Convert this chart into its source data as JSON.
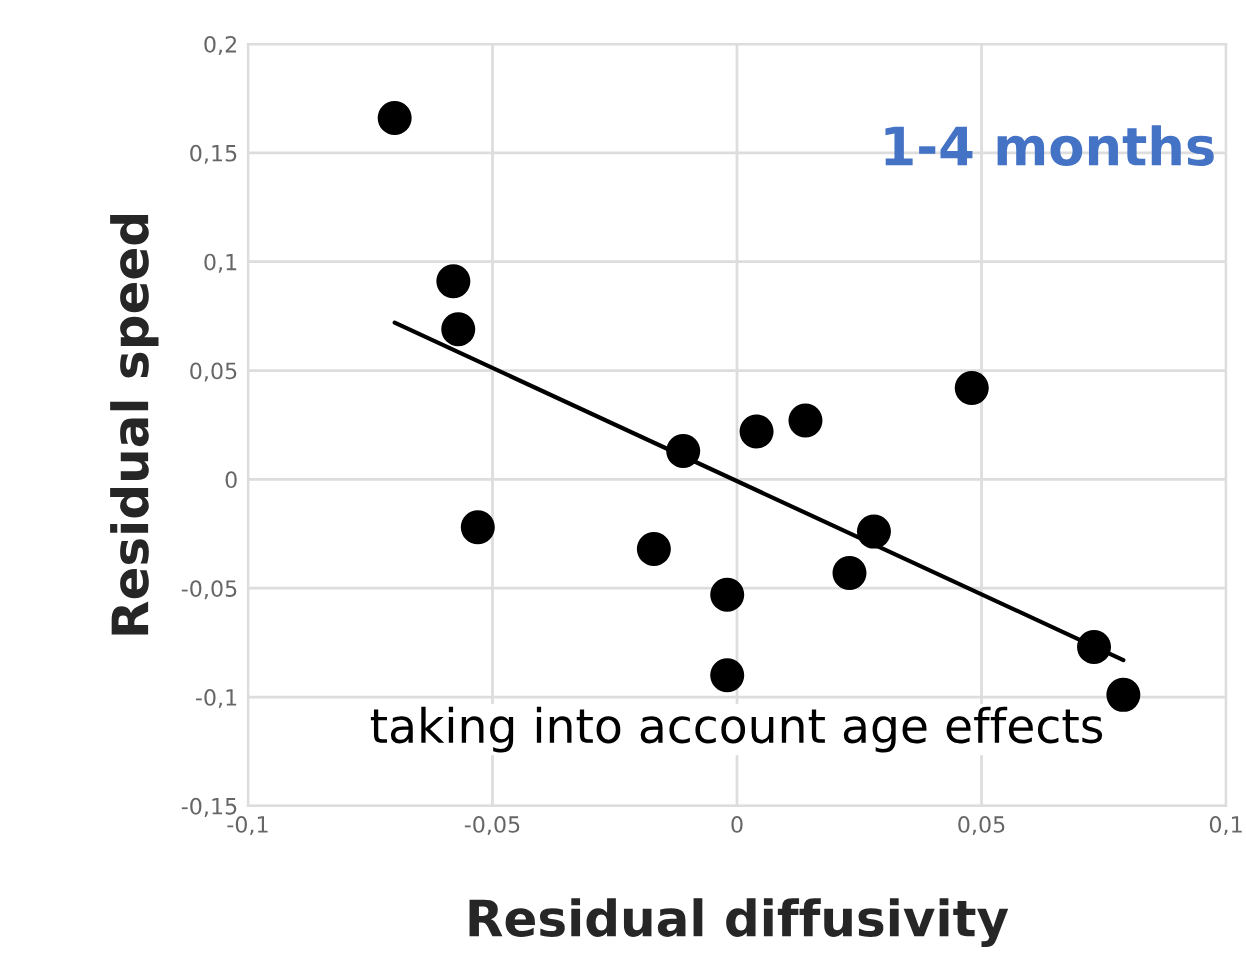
{
  "chart_data": {
    "type": "scatter",
    "xlabel": "Residual diffusivity",
    "ylabel": "Residual speed",
    "annotations": [
      "1-4 months",
      "taking into account age effects"
    ],
    "series": [
      {
        "color": "#000000",
        "marker": "circle",
        "x": [
          -0.07,
          -0.058,
          -0.057,
          -0.053,
          -0.017,
          -0.011,
          -0.002,
          -0.002,
          0.004,
          0.014,
          0.023,
          0.028,
          0.048,
          0.073,
          0.079
        ],
        "values": [
          0.166,
          0.091,
          0.069,
          -0.022,
          -0.032,
          0.013,
          -0.053,
          -0.09,
          0.022,
          0.027,
          -0.043,
          -0.024,
          0.042,
          -0.077,
          -0.099
        ]
      },
      {
        "type": "line",
        "color": "#000000",
        "x": [
          -0.07,
          0.079
        ],
        "values": [
          0.072,
          -0.083
        ]
      }
    ],
    "xlim": [
      -0.1,
      0.1
    ],
    "ylim": [
      -0.15,
      0.2
    ],
    "xticks": [
      {
        "value": -0.1,
        "label": "-0,1"
      },
      {
        "value": -0.05,
        "label": "-0,05"
      },
      0,
      {
        "value": 0.05,
        "label": "0,05"
      },
      {
        "value": 0.1,
        "label": "0,1"
      }
    ],
    "yticks": [
      {
        "value": -0.15,
        "label": "-0,15"
      },
      {
        "value": -0.1,
        "label": "-0,1"
      },
      {
        "value": -0.05,
        "label": "-0,05"
      },
      0,
      {
        "value": 0.05,
        "label": "0,05"
      },
      {
        "value": 0.1,
        "label": "0,1"
      },
      {
        "value": 0.15,
        "label": "0,15"
      },
      {
        "value": 0.2,
        "label": "0,2"
      }
    ],
    "grid": true
  }
}
